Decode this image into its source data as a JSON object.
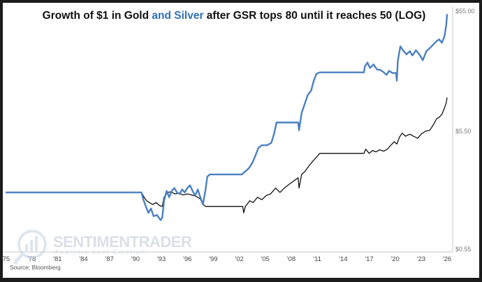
{
  "chart_data": {
    "type": "line",
    "title_part1": "Growth of $1 in Gold ",
    "title_part2": "and Silver",
    "title_part3": " after GSR tops 80 until it reaches 50 (LOG)",
    "yscale": "log",
    "ylim": [
      0.55,
      55.0
    ],
    "yticks": [
      "$55.00",
      "$5.50",
      "$0.55"
    ],
    "xlim": [
      1975,
      2026
    ],
    "xticks": [
      "'75",
      "'78",
      "'81",
      "'84",
      "'87",
      "'90",
      "'93",
      "'96",
      "'99",
      "'02",
      "'05",
      "'08",
      "'11",
      "'14",
      "'17",
      "'20",
      "'23",
      "'26"
    ],
    "source": "Source: Bloomberg",
    "grid": false,
    "series": [
      {
        "color": "#4a80c0",
        "points": [
          [
            1975.0,
            1.7
          ],
          [
            1990.7,
            1.7
          ],
          [
            1990.9,
            1.5
          ],
          [
            1991.2,
            1.3
          ],
          [
            1991.5,
            1.15
          ],
          [
            1991.8,
            1.25
          ],
          [
            1992.1,
            1.08
          ],
          [
            1992.5,
            1.1
          ],
          [
            1992.9,
            1.0
          ],
          [
            1993.1,
            1.05
          ],
          [
            1993.3,
            1.45
          ],
          [
            1993.6,
            1.75
          ],
          [
            1993.9,
            1.55
          ],
          [
            1994.2,
            1.75
          ],
          [
            1994.5,
            1.85
          ],
          [
            1994.8,
            1.7
          ],
          [
            1995.1,
            1.65
          ],
          [
            1995.4,
            1.8
          ],
          [
            1995.7,
            1.7
          ],
          [
            1996.0,
            1.85
          ],
          [
            1996.3,
            1.95
          ],
          [
            1996.6,
            1.75
          ],
          [
            1996.9,
            1.6
          ],
          [
            1997.2,
            1.8
          ],
          [
            1997.5,
            1.55
          ],
          [
            1997.8,
            1.35
          ],
          [
            1998.1,
            1.8
          ],
          [
            1998.3,
            2.3
          ],
          [
            1998.6,
            2.4
          ],
          [
            2002.3,
            2.4
          ],
          [
            2002.7,
            2.55
          ],
          [
            2003.1,
            2.7
          ],
          [
            2003.5,
            3.0
          ],
          [
            2003.9,
            3.5
          ],
          [
            2004.2,
            4.0
          ],
          [
            2004.6,
            4.2
          ],
          [
            2005.2,
            4.2
          ],
          [
            2005.7,
            4.4
          ],
          [
            2006.0,
            5.2
          ],
          [
            2006.3,
            6.5
          ],
          [
            2008.8,
            6.5
          ],
          [
            2008.9,
            5.6
          ],
          [
            2009.2,
            7.8
          ],
          [
            2009.6,
            9.5
          ],
          [
            2009.9,
            11.0
          ],
          [
            2010.3,
            12.0
          ],
          [
            2010.6,
            14.5
          ],
          [
            2010.9,
            16.5
          ],
          [
            2011.3,
            17.0
          ],
          [
            2016.4,
            17.0
          ],
          [
            2016.5,
            19.0
          ],
          [
            2016.8,
            20.5
          ],
          [
            2017.1,
            18.5
          ],
          [
            2017.5,
            19.8
          ],
          [
            2017.9,
            18.0
          ],
          [
            2018.3,
            17.8
          ],
          [
            2018.7,
            17.0
          ],
          [
            2019.0,
            16.2
          ],
          [
            2019.3,
            17.5
          ],
          [
            2019.7,
            16.8
          ],
          [
            2020.1,
            16.8
          ],
          [
            2020.2,
            14.5
          ],
          [
            2020.3,
            21.0
          ],
          [
            2020.6,
            28.0
          ],
          [
            2020.9,
            26.0
          ],
          [
            2021.3,
            24.0
          ],
          [
            2021.7,
            25.5
          ],
          [
            2022.0,
            23.5
          ],
          [
            2022.4,
            26.0
          ],
          [
            2022.8,
            24.0
          ],
          [
            2023.2,
            21.5
          ],
          [
            2023.6,
            25.5
          ],
          [
            2024.0,
            27.0
          ],
          [
            2024.4,
            29.0
          ],
          [
            2024.8,
            31.0
          ],
          [
            2025.1,
            32.0
          ],
          [
            2025.4,
            30.0
          ],
          [
            2025.7,
            34.0
          ],
          [
            2025.9,
            42.0
          ],
          [
            2026.0,
            52.0
          ]
        ]
      },
      {
        "color": "#111111",
        "points": [
          [
            1990.7,
            1.7
          ],
          [
            1991.0,
            1.55
          ],
          [
            1991.3,
            1.45
          ],
          [
            1991.6,
            1.4
          ],
          [
            1992.0,
            1.35
          ],
          [
            1992.4,
            1.4
          ],
          [
            1992.8,
            1.32
          ],
          [
            1993.1,
            1.3
          ],
          [
            1993.3,
            1.55
          ],
          [
            1993.7,
            1.7
          ],
          [
            1994.1,
            1.72
          ],
          [
            1994.6,
            1.65
          ],
          [
            1995.0,
            1.68
          ],
          [
            1995.5,
            1.62
          ],
          [
            1996.0,
            1.65
          ],
          [
            1996.5,
            1.62
          ],
          [
            1997.0,
            1.58
          ],
          [
            1997.5,
            1.5
          ],
          [
            1997.8,
            1.35
          ],
          [
            1998.1,
            1.3
          ],
          [
            2001.5,
            1.3
          ],
          [
            2002.4,
            1.3
          ],
          [
            2002.5,
            1.15
          ],
          [
            2002.7,
            1.3
          ],
          [
            2003.2,
            1.45
          ],
          [
            2003.6,
            1.4
          ],
          [
            2004.1,
            1.55
          ],
          [
            2004.6,
            1.48
          ],
          [
            2005.1,
            1.6
          ],
          [
            2005.6,
            1.65
          ],
          [
            2006.2,
            1.85
          ],
          [
            2006.7,
            1.7
          ],
          [
            2007.2,
            1.85
          ],
          [
            2007.8,
            2.0
          ],
          [
            2008.4,
            2.15
          ],
          [
            2008.8,
            2.25
          ],
          [
            2008.9,
            1.85
          ],
          [
            2009.2,
            2.4
          ],
          [
            2009.6,
            2.55
          ],
          [
            2010.0,
            2.8
          ],
          [
            2010.5,
            3.1
          ],
          [
            2011.0,
            3.4
          ],
          [
            2011.3,
            3.6
          ],
          [
            2016.4,
            3.6
          ],
          [
            2016.6,
            3.9
          ],
          [
            2017.0,
            3.6
          ],
          [
            2017.4,
            3.8
          ],
          [
            2017.8,
            3.7
          ],
          [
            2018.2,
            3.85
          ],
          [
            2018.7,
            3.75
          ],
          [
            2019.1,
            3.9
          ],
          [
            2019.5,
            4.2
          ],
          [
            2019.9,
            4.5
          ],
          [
            2020.2,
            4.3
          ],
          [
            2020.5,
            4.9
          ],
          [
            2020.8,
            5.3
          ],
          [
            2021.2,
            5.0
          ],
          [
            2021.7,
            5.2
          ],
          [
            2022.1,
            5.0
          ],
          [
            2022.6,
            4.8
          ],
          [
            2023.0,
            5.2
          ],
          [
            2023.5,
            5.5
          ],
          [
            2024.0,
            5.6
          ],
          [
            2024.4,
            6.2
          ],
          [
            2024.8,
            7.0
          ],
          [
            2025.1,
            7.2
          ],
          [
            2025.4,
            7.6
          ],
          [
            2025.7,
            8.6
          ],
          [
            2025.9,
            9.5
          ],
          [
            2026.0,
            10.5
          ]
        ]
      }
    ]
  }
}
